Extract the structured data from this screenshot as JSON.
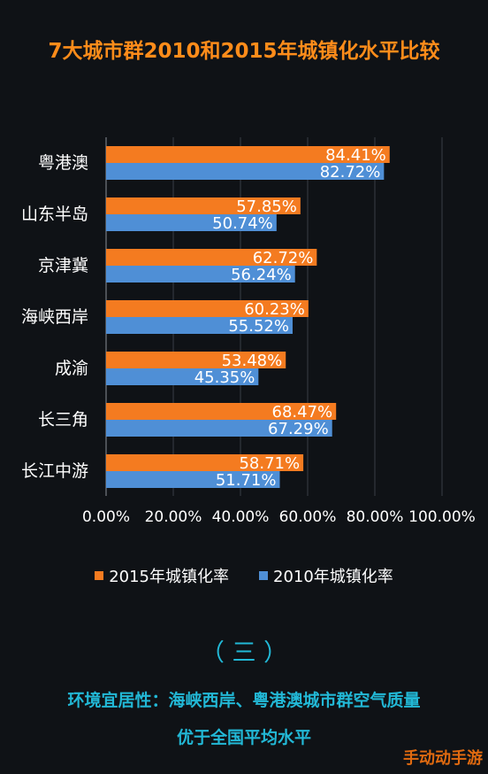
{
  "chart_data": {
    "type": "bar",
    "orientation": "horizontal",
    "title": "7大城市群2010和2015年城镇化水平比较",
    "categories": [
      "粤港澳",
      "山东半岛",
      "京津冀",
      "海峡西岸",
      "成渝",
      "长三角",
      "长江中游"
    ],
    "series": [
      {
        "name": "2015年城镇化率",
        "color": "#f47b20",
        "values": [
          84.41,
          57.85,
          62.72,
          60.23,
          53.48,
          68.47,
          58.71
        ],
        "labels": [
          "84.41%",
          "57.85%",
          "62.72%",
          "60.23%",
          "53.48%",
          "68.47%",
          "58.71%"
        ]
      },
      {
        "name": "2010年城镇化率",
        "color": "#4f8fd6",
        "values": [
          82.72,
          50.74,
          56.24,
          55.52,
          45.35,
          67.29,
          51.71
        ],
        "labels": [
          "82.72%",
          "50.74%",
          "56.24%",
          "55.52%",
          "45.35%",
          "67.29%",
          "51.71%"
        ]
      }
    ],
    "xlim": [
      0,
      100
    ],
    "x_ticks": [
      0,
      20,
      40,
      60,
      80,
      100
    ],
    "x_tick_labels": [
      "0.00%",
      "20.00%",
      "40.00%",
      "60.00%",
      "80.00%",
      "100.00%"
    ],
    "grid": true,
    "legend_position": "bottom"
  },
  "section": {
    "heading": "（ 三 ）",
    "line1": "环境宜居性：海峡西岸、粤港澳城市群空气质量",
    "line2": "优于全国平均水平"
  },
  "watermark": "手动动手游"
}
